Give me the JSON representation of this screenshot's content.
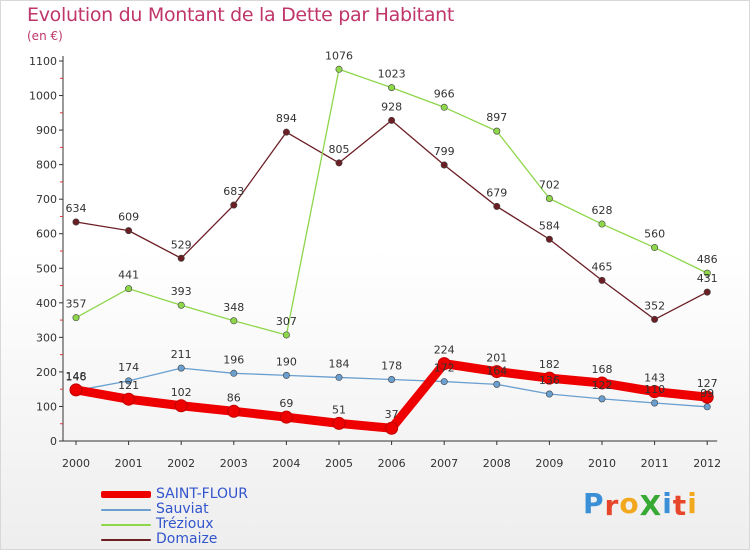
{
  "title": "Evolution du Montant de la Dette par Habitant",
  "subtitle": "(en €)",
  "logo": {
    "text": "ProXiti",
    "letters": [
      {
        "ch": "P",
        "color": "#3a8fd6"
      },
      {
        "ch": "r",
        "color": "#e8462a"
      },
      {
        "ch": "o",
        "color": "#f2a81d"
      },
      {
        "ch": "X",
        "color": "#39a935"
      },
      {
        "ch": "i",
        "color": "#3a8fd6"
      },
      {
        "ch": "t",
        "color": "#e8462a"
      },
      {
        "ch": "i",
        "color": "#f2a81d"
      }
    ]
  },
  "legend": [
    {
      "name": "SAINT-FLOUR",
      "color": "#ee0000",
      "thick": true
    },
    {
      "name": "Sauviat",
      "color": "#6a9fd0",
      "thick": false
    },
    {
      "name": "Trézioux",
      "color": "#8ed64a",
      "thick": false
    },
    {
      "name": "Domaize",
      "color": "#6b1e24",
      "thick": false
    }
  ],
  "chart_data": {
    "type": "line",
    "title": "Evolution du Montant de la Dette par Habitant",
    "ylabel": "(en €)",
    "categories": [
      "2000",
      "2001",
      "2002",
      "2003",
      "2004",
      "2005",
      "2006",
      "2007",
      "2008",
      "2009",
      "2010",
      "2011",
      "2012"
    ],
    "ylim": [
      0,
      1100
    ],
    "yticks": [
      0,
      100,
      200,
      300,
      400,
      500,
      600,
      700,
      800,
      900,
      1000,
      1100
    ],
    "grid": false,
    "legend_position": "bottom-left",
    "series": [
      {
        "name": "SAINT-FLOUR",
        "color": "#ee0000",
        "values": [
          148,
          121,
          102,
          86,
          69,
          51,
          37,
          224,
          201,
          182,
          168,
          143,
          127
        ],
        "labels": [
          "148",
          "121",
          "102",
          "86",
          "69",
          "51",
          "37",
          "224",
          "201",
          "182",
          "168",
          "143",
          "127"
        ]
      },
      {
        "name": "Sauviat",
        "color": "#6a9fd0",
        "values": [
          146,
          174,
          211,
          196,
          190,
          184,
          178,
          172,
          164,
          136,
          122,
          110,
          99
        ],
        "labels": [
          "146",
          "174",
          "211",
          "196",
          "190",
          "184",
          "178",
          "172",
          "164",
          "136",
          "122",
          "110",
          "99"
        ]
      },
      {
        "name": "Trézioux",
        "color": "#8ed64a",
        "values": [
          357,
          441,
          393,
          348,
          307,
          1076,
          1023,
          966,
          897,
          702,
          628,
          560,
          486
        ],
        "labels": [
          "357",
          "441",
          "393",
          "348",
          "307",
          "1076",
          "1023",
          "966",
          "897",
          "702",
          "628",
          "560",
          "486"
        ]
      },
      {
        "name": "Domaize",
        "color": "#6b1e24",
        "values": [
          634,
          609,
          529,
          683,
          894,
          805,
          928,
          799,
          679,
          584,
          465,
          352,
          431
        ],
        "labels": [
          "634",
          "609",
          "529",
          "683",
          "894",
          "805",
          "928",
          "799",
          "679",
          "584",
          "465",
          "352",
          "431"
        ]
      }
    ]
  }
}
